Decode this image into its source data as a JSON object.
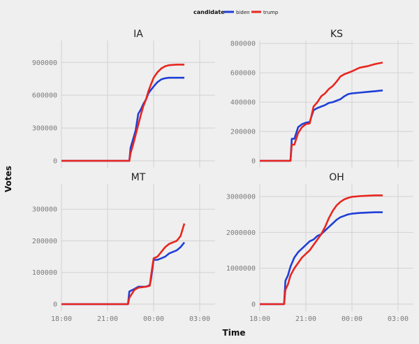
{
  "chart_data": {
    "type": "line",
    "xlabel": "Time",
    "ylabel": "Votes",
    "x_ticks": [
      "18:00",
      "21:00",
      "00:00",
      "03:00"
    ],
    "xlim": [
      "18:00",
      "04:00"
    ],
    "grid": true,
    "legend": {
      "title": "candidate",
      "placement": "top",
      "entries": [
        {
          "name": "biden",
          "color": "#1f3fd6"
        },
        {
          "name": "trump",
          "color": "#e8261f"
        }
      ]
    },
    "panels": [
      {
        "title": "IA",
        "ylim": [
          0,
          1100000
        ],
        "y_ticks": [
          0,
          300000,
          600000,
          900000
        ],
        "y_tick_labels": [
          "0",
          "300000",
          "600000",
          "900000"
        ],
        "series": [
          {
            "name": "biden",
            "x": [
              "18:00",
              "22:25",
              "22:30",
              "22:40",
              "22:50",
              "23:00",
              "23:10",
              "23:20",
              "23:30",
              "23:40",
              "23:50",
              "00:00",
              "00:15",
              "00:30",
              "00:45",
              "01:00",
              "01:30",
              "02:00"
            ],
            "y": [
              0,
              0,
              120000,
              200000,
              280000,
              430000,
              470000,
              520000,
              560000,
              620000,
              650000,
              680000,
              720000,
              745000,
              755000,
              760000,
              760000,
              760000
            ]
          },
          {
            "name": "trump",
            "x": [
              "18:00",
              "22:25",
              "22:30",
              "22:40",
              "22:50",
              "23:00",
              "23:10",
              "23:20",
              "23:30",
              "23:40",
              "23:50",
              "00:00",
              "00:15",
              "00:30",
              "00:45",
              "01:00",
              "01:30",
              "02:00"
            ],
            "y": [
              0,
              0,
              70000,
              150000,
              240000,
              330000,
              420000,
              500000,
              560000,
              640000,
              700000,
              760000,
              810000,
              845000,
              865000,
              875000,
              880000,
              880000
            ]
          }
        ]
      },
      {
        "title": "KS",
        "ylim": [
          0,
          820000
        ],
        "y_ticks": [
          0,
          200000,
          400000,
          600000,
          800000
        ],
        "y_tick_labels": [
          "0",
          "200000",
          "400000",
          "600000",
          "800000"
        ],
        "series": [
          {
            "name": "biden",
            "x": [
              "18:00",
              "20:00",
              "20:05",
              "20:15",
              "20:30",
              "20:45",
              "21:00",
              "21:15",
              "21:30",
              "21:45",
              "22:00",
              "22:15",
              "22:30",
              "22:45",
              "23:00",
              "23:15",
              "23:30",
              "23:45",
              "00:00",
              "00:30",
              "01:00",
              "01:30",
              "02:00"
            ],
            "y": [
              0,
              0,
              150000,
              150000,
              230000,
              250000,
              260000,
              265000,
              345000,
              360000,
              370000,
              380000,
              395000,
              400000,
              410000,
              420000,
              440000,
              455000,
              460000,
              465000,
              470000,
              475000,
              480000
            ]
          },
          {
            "name": "trump",
            "x": [
              "18:00",
              "20:00",
              "20:05",
              "20:15",
              "20:30",
              "20:45",
              "21:00",
              "21:15",
              "21:30",
              "21:45",
              "22:00",
              "22:15",
              "22:30",
              "22:45",
              "23:00",
              "23:15",
              "23:30",
              "23:45",
              "00:00",
              "00:30",
              "01:00",
              "01:30",
              "02:00"
            ],
            "y": [
              0,
              0,
              110000,
              110000,
              190000,
              230000,
              250000,
              255000,
              370000,
              400000,
              440000,
              460000,
              490000,
              510000,
              540000,
              575000,
              590000,
              600000,
              610000,
              635000,
              645000,
              660000,
              670000
            ]
          }
        ]
      },
      {
        "title": "MT",
        "ylim": [
          0,
          380000
        ],
        "y_ticks": [
          0,
          100000,
          200000,
          300000
        ],
        "y_tick_labels": [
          "0",
          "100000",
          "200000",
          "300000"
        ],
        "series": [
          {
            "name": "biden",
            "x": [
              "18:00",
              "22:20",
              "22:25",
              "22:45",
              "23:00",
              "23:30",
              "23:45",
              "23:50",
              "00:00",
              "00:15",
              "00:30",
              "00:45",
              "01:00",
              "01:15",
              "01:30",
              "01:45",
              "02:00"
            ],
            "y": [
              0,
              0,
              40000,
              48000,
              55000,
              55000,
              60000,
              80000,
              140000,
              140000,
              145000,
              150000,
              160000,
              165000,
              170000,
              180000,
              195000
            ]
          },
          {
            "name": "trump",
            "x": [
              "18:00",
              "22:20",
              "22:25",
              "22:45",
              "23:00",
              "23:30",
              "23:45",
              "23:50",
              "00:00",
              "00:15",
              "00:30",
              "00:45",
              "01:00",
              "01:15",
              "01:30",
              "01:45",
              "02:00"
            ],
            "y": [
              0,
              0,
              20000,
              45000,
              52000,
              55000,
              58000,
              90000,
              145000,
              150000,
              165000,
              180000,
              190000,
              195000,
              200000,
              215000,
              255000
            ]
          }
        ]
      },
      {
        "title": "OH",
        "ylim": [
          0,
          3350000
        ],
        "y_ticks": [
          0,
          1000000,
          2000000,
          3000000
        ],
        "y_tick_labels": [
          "0",
          "1000000",
          "2000000",
          "3000000"
        ],
        "series": [
          {
            "name": "biden",
            "x": [
              "18:00",
              "19:35",
              "19:40",
              "19:50",
              "20:00",
              "20:15",
              "20:30",
              "20:45",
              "21:00",
              "21:15",
              "21:30",
              "21:45",
              "22:00",
              "22:15",
              "22:30",
              "22:45",
              "23:00",
              "23:15",
              "23:30",
              "23:45",
              "00:00",
              "00:30",
              "01:00",
              "01:30",
              "02:00"
            ],
            "y": [
              0,
              0,
              650000,
              800000,
              1050000,
              1300000,
              1450000,
              1550000,
              1650000,
              1750000,
              1800000,
              1900000,
              1950000,
              2050000,
              2150000,
              2250000,
              2350000,
              2420000,
              2460000,
              2500000,
              2520000,
              2540000,
              2550000,
              2560000,
              2560000
            ]
          },
          {
            "name": "trump",
            "x": [
              "18:00",
              "19:35",
              "19:40",
              "19:50",
              "20:00",
              "20:15",
              "20:30",
              "20:45",
              "21:00",
              "21:15",
              "21:30",
              "21:45",
              "22:00",
              "22:15",
              "22:30",
              "22:45",
              "23:00",
              "23:15",
              "23:30",
              "23:45",
              "00:00",
              "00:30",
              "01:00",
              "01:30",
              "02:00"
            ],
            "y": [
              0,
              0,
              400000,
              550000,
              800000,
              1000000,
              1150000,
              1300000,
              1400000,
              1500000,
              1650000,
              1800000,
              1950000,
              2150000,
              2400000,
              2600000,
              2750000,
              2850000,
              2920000,
              2960000,
              2990000,
              3010000,
              3020000,
              3030000,
              3030000
            ]
          }
        ]
      }
    ]
  }
}
